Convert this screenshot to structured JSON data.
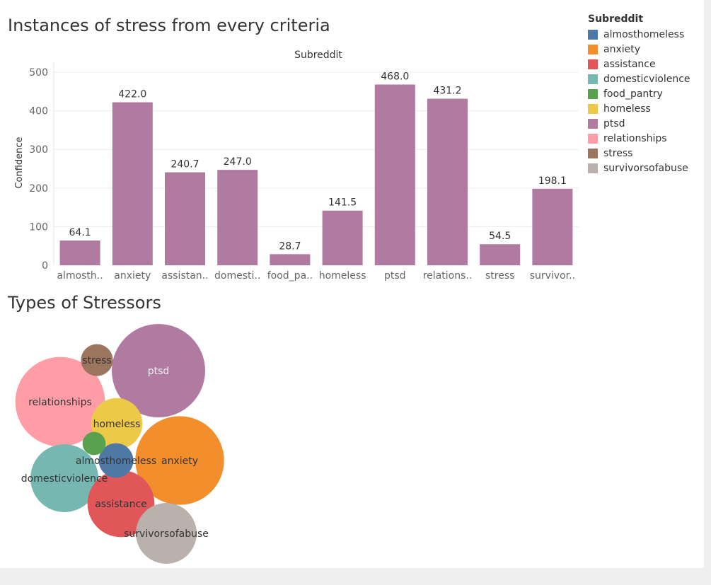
{
  "dashboard": {
    "bar_title": "Instances of stress from every criteria",
    "bubble_title": "Types of Stressors"
  },
  "legend": {
    "title": "Subreddit",
    "items": [
      {
        "label": "almosthomeless",
        "color": "#4e79a7"
      },
      {
        "label": "anxiety",
        "color": "#f28e2b"
      },
      {
        "label": "assistance",
        "color": "#e15759"
      },
      {
        "label": "domesticviolence",
        "color": "#76b7b2"
      },
      {
        "label": "food_pantry",
        "color": "#59a14f"
      },
      {
        "label": "homeless",
        "color": "#edc948"
      },
      {
        "label": "ptsd",
        "color": "#b07aa1"
      },
      {
        "label": "relationships",
        "color": "#ff9da7"
      },
      {
        "label": "stress",
        "color": "#9c755f"
      },
      {
        "label": "survivorsofabuse",
        "color": "#bab0ac"
      }
    ]
  },
  "chart_data": [
    {
      "type": "bar",
      "title": "Instances of stress from every criteria",
      "header": "Subreddit",
      "xlabel": "",
      "ylabel": "Confidence",
      "ylim": [
        0,
        500
      ],
      "yticks": [
        0,
        100,
        200,
        300,
        400,
        500
      ],
      "grid": true,
      "bar_color": "#b07aa1",
      "categories": [
        "almosthomeless",
        "anxiety",
        "assistance",
        "domesticviolence",
        "food_pantry",
        "homeless",
        "ptsd",
        "relationships",
        "stress",
        "survivorsofabuse"
      ],
      "tick_labels": [
        "almosth..",
        "anxiety",
        "assistan..",
        "domesti..",
        "food_pa..",
        "homeless",
        "ptsd",
        "relations..",
        "stress",
        "survivor.."
      ],
      "values": [
        64.1,
        422.0,
        240.7,
        247.0,
        28.7,
        141.5,
        468.0,
        431.2,
        54.5,
        198.1
      ],
      "value_labels": [
        "64.1",
        "422.0",
        "240.7",
        "247.0",
        "28.7",
        "141.5",
        "468.0",
        "431.2",
        "54.5",
        "198.1"
      ]
    },
    {
      "type": "bubble",
      "title": "Types of Stressors",
      "size_measure": "Confidence",
      "bubbles": [
        {
          "label": "ptsd",
          "value": 468.0,
          "color": "#b07aa1",
          "text_color": "#f3f3f3"
        },
        {
          "label": "anxiety",
          "value": 422.0,
          "color": "#f28e2b",
          "text_color": "#333333"
        },
        {
          "label": "relationships",
          "value": 431.2,
          "color": "#ff9da7",
          "text_color": "#333333"
        },
        {
          "label": "domesticviolence",
          "value": 247.0,
          "color": "#76b7b2",
          "text_color": "#333333"
        },
        {
          "label": "assistance",
          "value": 240.7,
          "color": "#e15759",
          "text_color": "#333333"
        },
        {
          "label": "survivorsofabuse",
          "value": 198.1,
          "color": "#bab0ac",
          "text_color": "#333333"
        },
        {
          "label": "homeless",
          "value": 141.5,
          "color": "#edc948",
          "text_color": "#333333"
        },
        {
          "label": "almosthomeless",
          "value": 64.1,
          "color": "#4e79a7",
          "text_color": "#333333"
        },
        {
          "label": "stress",
          "value": 54.5,
          "color": "#9c755f",
          "text_color": "#333333"
        },
        {
          "label": "food_pantry",
          "value": 28.7,
          "color": "#59a14f",
          "text_color": "#333333"
        }
      ]
    }
  ]
}
